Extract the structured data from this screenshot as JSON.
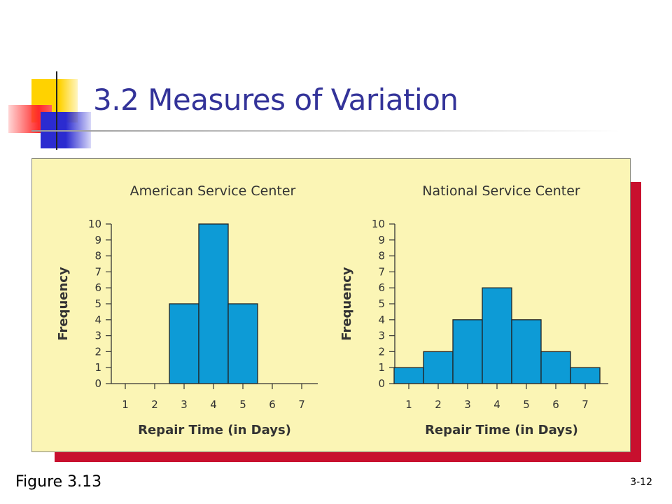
{
  "slide": {
    "title": "3.2 Measures of Variation",
    "figure_label": "Figure 3.13",
    "page_number": "3-12"
  },
  "colors": {
    "title": "#333399",
    "bar_fill": "#0d9bd6",
    "panel_bg": "#fbf5b5",
    "panel_shadow": "#c8102e"
  },
  "chart_data": [
    {
      "type": "bar",
      "title": "American Service Center",
      "xlabel": "Repair Time (in Days)",
      "ylabel": "Frequency",
      "categories": [
        "1",
        "2",
        "3",
        "4",
        "5",
        "6",
        "7"
      ],
      "values": [
        0,
        0,
        5,
        10,
        5,
        0,
        0
      ],
      "ylim": [
        0,
        10
      ],
      "yticks": [
        "0",
        "1",
        "2",
        "3",
        "4",
        "5",
        "6",
        "7",
        "8",
        "9",
        "10"
      ],
      "grid": false
    },
    {
      "type": "bar",
      "title": "National Service Center",
      "xlabel": "Repair Time (in Days)",
      "ylabel": "Frequency",
      "categories": [
        "1",
        "2",
        "3",
        "4",
        "5",
        "6",
        "7"
      ],
      "values": [
        1,
        2,
        4,
        6,
        4,
        2,
        1
      ],
      "ylim": [
        0,
        10
      ],
      "yticks": [
        "0",
        "1",
        "2",
        "3",
        "4",
        "5",
        "6",
        "7",
        "8",
        "9",
        "10"
      ],
      "grid": false
    }
  ]
}
